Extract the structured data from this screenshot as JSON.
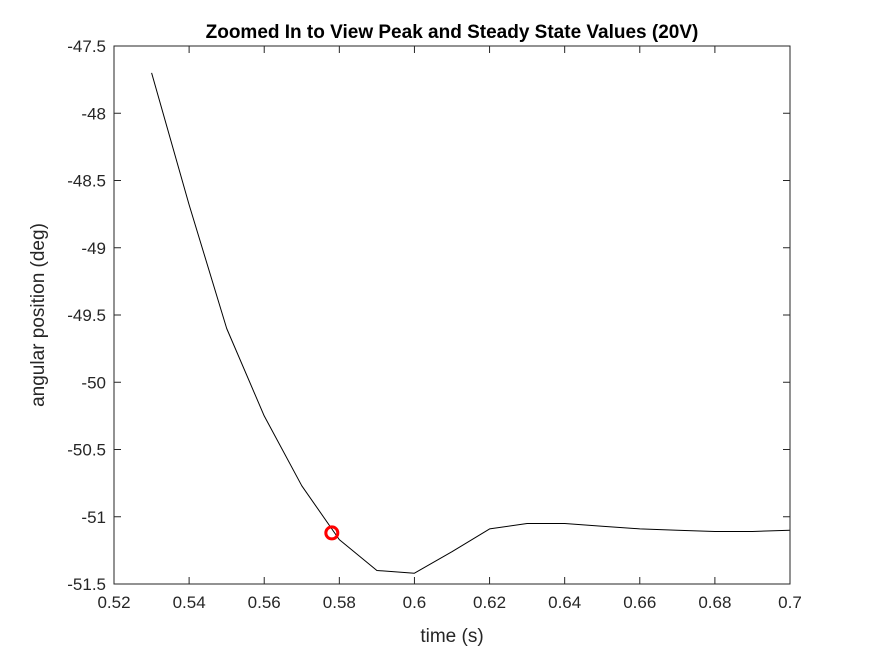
{
  "chart_data": {
    "type": "line",
    "title": "Zoomed In to View Peak and Steady State Values (20V)",
    "xlabel": "time (s)",
    "ylabel": "angular position (deg)",
    "xlim": [
      0.52,
      0.7
    ],
    "ylim": [
      -51.5,
      -47.5
    ],
    "xticks": [
      0.52,
      0.54,
      0.56,
      0.58,
      0.6,
      0.62,
      0.64,
      0.66,
      0.68,
      0.7
    ],
    "xtick_labels": [
      "0.52",
      "0.54",
      "0.56",
      "0.58",
      "0.6",
      "0.62",
      "0.64",
      "0.66",
      "0.68",
      "0.7"
    ],
    "yticks": [
      -47.5,
      -48,
      -48.5,
      -49,
      -49.5,
      -50,
      -50.5,
      -51,
      -51.5
    ],
    "ytick_labels": [
      "-47.5",
      "-48",
      "-48.5",
      "-49",
      "-49.5",
      "-50",
      "-50.5",
      "-51",
      "-51.5"
    ],
    "grid": false,
    "series": [
      {
        "color": "#000000",
        "x": [
          0.53,
          0.54,
          0.55,
          0.56,
          0.57,
          0.58,
          0.59,
          0.6,
          0.61,
          0.62,
          0.63,
          0.64,
          0.65,
          0.66,
          0.67,
          0.68,
          0.69,
          0.7
        ],
        "y": [
          -47.7,
          -48.68,
          -49.6,
          -50.25,
          -50.77,
          -51.17,
          -51.4,
          -51.42,
          -51.26,
          -51.09,
          -51.05,
          -51.05,
          -51.07,
          -51.09,
          -51.1,
          -51.11,
          -51.11,
          -51.1
        ]
      }
    ],
    "marker": {
      "x": 0.578,
      "y": -51.12,
      "shape": "circle",
      "color": "#ff0000"
    }
  }
}
